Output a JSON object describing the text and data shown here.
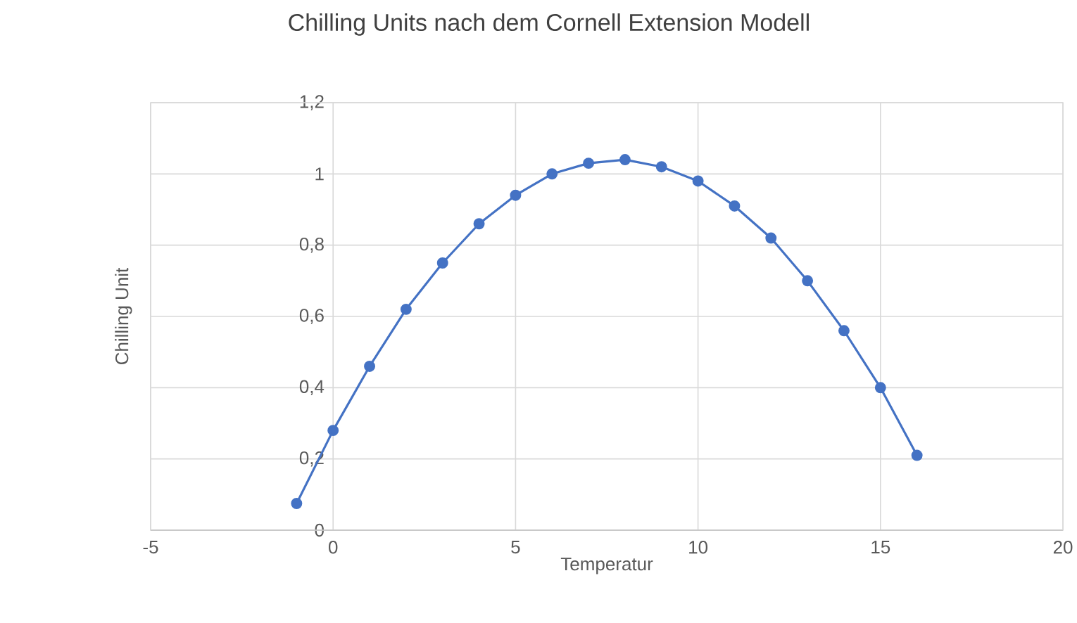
{
  "chart_data": {
    "type": "line",
    "title": "Chilling Units nach dem Cornell Extension Modell",
    "xlabel": "Temperatur",
    "ylabel": "Chilling Unit",
    "x": [
      -1,
      0,
      1,
      2,
      3,
      4,
      5,
      6,
      7,
      8,
      9,
      10,
      11,
      12,
      13,
      14,
      15,
      16
    ],
    "series": [
      {
        "color": "#4472c4",
        "values": [
          0.075,
          0.28,
          0.46,
          0.62,
          0.75,
          0.86,
          0.94,
          1.0,
          1.03,
          1.04,
          1.02,
          0.98,
          0.91,
          0.82,
          0.7,
          0.56,
          0.4,
          0.21
        ]
      }
    ],
    "xlim": [
      -5,
      20
    ],
    "xticks": [
      -5,
      0,
      5,
      10,
      15,
      20
    ],
    "ylim": [
      0,
      1.2
    ],
    "yticks": [
      0,
      {
        "value": 0.2,
        "label": "0,2"
      },
      {
        "value": 0.4,
        "label": "0,4"
      },
      {
        "value": 0.6,
        "label": "0,6"
      },
      {
        "value": 0.8,
        "label": "0,8"
      },
      1,
      {
        "value": 1.2,
        "label": "1,2"
      }
    ],
    "grid": true,
    "marker": "circle",
    "line_style": "solid"
  }
}
